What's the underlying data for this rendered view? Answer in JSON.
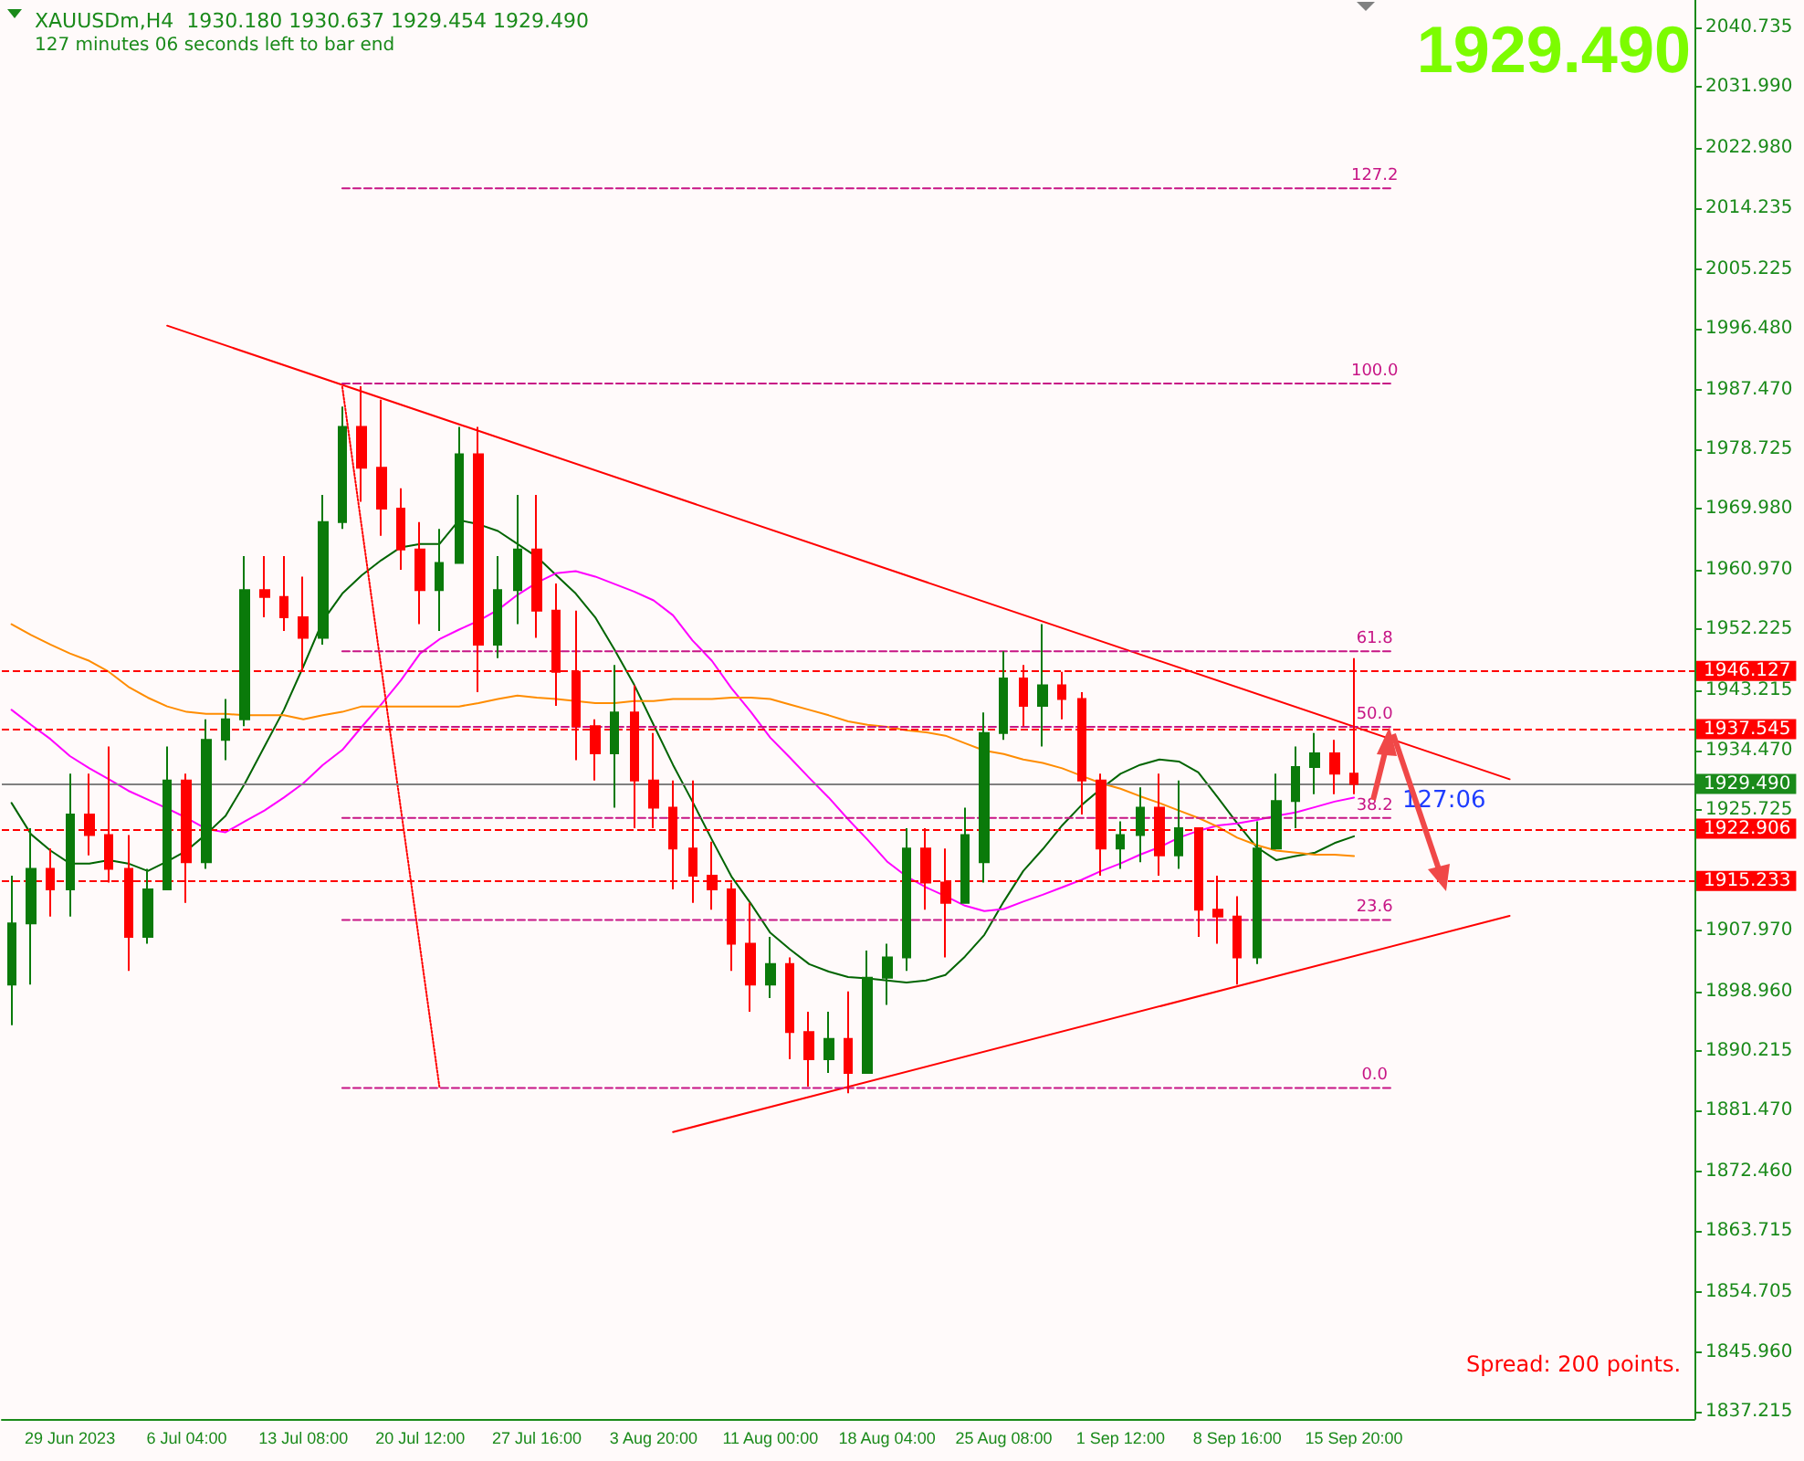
{
  "chart_data": {
    "type": "candlestick",
    "title": "XAUUSDm,H4  1930.180 1930.637 1929.454 1929.490",
    "subtitle": "127 minutes 06 seconds left to bar end",
    "categories": [
      null,
      null,
      null,
      "29 Jun 2023",
      null,
      null,
      null,
      null,
      null,
      "6 Jul 04:00",
      null,
      null,
      null,
      null,
      null,
      "13 Jul 08:00",
      null,
      null,
      null,
      null,
      null,
      "20 Jul 12:00",
      null,
      null,
      null,
      null,
      null,
      "27 Jul 16:00",
      null,
      null,
      null,
      null,
      null,
      "3 Aug 20:00",
      null,
      null,
      null,
      null,
      null,
      "11 Aug 00:00",
      null,
      null,
      null,
      null,
      null,
      "18 Aug 04:00",
      null,
      null,
      null,
      null,
      null,
      "25 Aug 08:00",
      null,
      null,
      null,
      null,
      null,
      "1 Sep 12:00",
      null,
      null,
      null,
      null,
      null,
      "8 Sep 16:00",
      null,
      null,
      null,
      null,
      null,
      "15 Sep 20:00",
      null,
      null,
      null,
      null,
      null,
      null,
      null,
      null,
      null,
      null,
      null,
      null,
      null,
      null,
      null,
      null,
      null
    ],
    "series": [
      {
        "type": "line",
        "color": "#006400",
        "values": [
          1926.7,
          1922.1,
          1919.7,
          1917.8,
          1917.8,
          1918.3,
          1917.8,
          1916.7,
          1918.1,
          1919.7,
          1922.1,
          1924.8,
          1929.6,
          1935.0,
          1940.4,
          1946.8,
          1953.5,
          1957.5,
          1960.2,
          1962.4,
          1964.3,
          1964.8,
          1964.8,
          1968.3,
          1967.7,
          1966.7,
          1964.8,
          1962.9,
          1960.2,
          1957.5,
          1954.0,
          1949.2,
          1944.1,
          1938.2,
          1932.3,
          1926.9,
          1921.3,
          1915.9,
          1911.9,
          1907.6,
          1905.2,
          1903.0,
          1901.9,
          1901.1,
          1900.9,
          1900.6,
          1900.3,
          1900.6,
          1901.4,
          1904.1,
          1907.3,
          1912.2,
          1916.7,
          1919.9,
          1923.4,
          1926.4,
          1928.8,
          1931.0,
          1932.3,
          1933.1,
          1932.8,
          1931.2,
          1927.5,
          1923.7,
          1920.2,
          1918.3,
          1918.9,
          1919.4,
          1920.8,
          1921.8,
          null,
          null,
          null,
          null,
          null,
          null,
          null,
          null,
          null,
          null,
          null,
          null,
          null,
          null,
          null,
          null,
          null
        ]
      },
      {
        "type": "line",
        "color": "#ff00ff",
        "values": [
          1940.4,
          1938.2,
          1936.1,
          1933.6,
          1931.8,
          1930.2,
          1928.5,
          1927.2,
          1925.9,
          1924.5,
          1922.9,
          1922.4,
          1924.0,
          1925.6,
          1927.5,
          1929.6,
          1932.3,
          1934.5,
          1937.9,
          1941.2,
          1944.7,
          1948.7,
          1950.8,
          1952.2,
          1953.5,
          1955.1,
          1957.3,
          1959.1,
          1960.5,
          1960.8,
          1960.0,
          1958.9,
          1957.8,
          1956.5,
          1954.3,
          1950.6,
          1947.6,
          1943.6,
          1940.1,
          1936.3,
          1933.4,
          1930.4,
          1927.5,
          1924.3,
          1921.3,
          1918.1,
          1915.9,
          1914.3,
          1913.0,
          1911.6,
          1910.8,
          1911.1,
          1912.2,
          1913.2,
          1914.3,
          1915.4,
          1916.7,
          1917.8,
          1919.1,
          1920.2,
          1921.6,
          1922.6,
          1923.4,
          1923.7,
          1924.2,
          1924.8,
          1925.3,
          1926.1,
          1926.9,
          1927.5,
          null,
          null,
          null,
          null,
          null,
          null,
          null,
          null,
          null,
          null,
          null,
          null,
          null,
          null,
          null,
          null,
          null
        ]
      },
      {
        "type": "line",
        "color": "#ff8c00",
        "values": [
          1953.0,
          1951.4,
          1950.0,
          1948.7,
          1947.6,
          1946.0,
          1943.8,
          1942.2,
          1940.9,
          1940.1,
          1939.8,
          1939.8,
          1939.6,
          1939.6,
          1939.6,
          1939.0,
          1939.6,
          1940.1,
          1940.9,
          1940.9,
          1940.9,
          1940.9,
          1940.9,
          1940.9,
          1941.4,
          1942.0,
          1942.5,
          1942.2,
          1942.0,
          1941.7,
          1941.4,
          1941.4,
          1941.7,
          1941.7,
          1942.0,
          1942.0,
          1942.0,
          1942.2,
          1942.2,
          1942.0,
          1941.2,
          1940.4,
          1939.6,
          1938.7,
          1938.2,
          1937.9,
          1937.4,
          1937.1,
          1936.6,
          1935.5,
          1934.4,
          1933.9,
          1933.1,
          1932.6,
          1931.8,
          1930.7,
          1929.6,
          1928.8,
          1927.7,
          1926.7,
          1925.6,
          1924.5,
          1923.2,
          1921.6,
          1920.5,
          1919.7,
          1919.4,
          1919.1,
          1919.1,
          1918.9,
          null,
          null,
          null,
          null,
          null,
          null,
          null,
          null,
          null,
          null,
          null,
          null,
          null,
          null,
          null,
          null,
          null
        ]
      },
      {
        "type": "line",
        "color": "#ff0000",
        "values": [
          null,
          null,
          null,
          null,
          null,
          null,
          null,
          null,
          1996.9,
          null,
          null,
          null,
          null,
          null,
          null,
          null,
          null,
          null,
          null,
          null,
          null,
          null,
          null,
          null,
          null,
          null,
          null,
          null,
          null,
          null,
          null,
          null,
          null,
          null,
          null,
          null,
          null,
          null,
          null,
          null,
          null,
          null,
          null,
          null,
          null,
          null,
          null,
          null,
          null,
          null,
          null,
          null,
          null,
          null,
          null,
          null,
          null,
          null,
          null,
          null,
          null,
          null,
          null,
          null,
          null,
          null,
          null,
          null,
          null,
          null,
          null,
          null,
          null,
          null,
          null,
          null,
          null,
          1930.2,
          null,
          null,
          null,
          null,
          null,
          null,
          null,
          null,
          null
        ]
      },
      {
        "type": "line",
        "color": "#ff0000",
        "values": [
          null,
          null,
          null,
          null,
          null,
          null,
          null,
          null,
          null,
          null,
          null,
          null,
          null,
          null,
          null,
          null,
          null,
          null,
          null,
          null,
          null,
          null,
          null,
          null,
          null,
          null,
          null,
          null,
          null,
          null,
          null,
          null,
          null,
          null,
          1878.3,
          null,
          null,
          null,
          null,
          null,
          null,
          null,
          null,
          null,
          null,
          null,
          null,
          null,
          null,
          null,
          null,
          null,
          null,
          null,
          null,
          null,
          null,
          null,
          null,
          null,
          null,
          null,
          null,
          null,
          null,
          null,
          null,
          null,
          null,
          null,
          null,
          null,
          null,
          null,
          null,
          null,
          null,
          1910.1,
          null,
          null,
          null,
          null,
          null,
          null,
          null,
          null,
          null
        ]
      },
      {
        "type": "line",
        "color": "#ff0000",
        "line_style": "dotted",
        "values": [
          null,
          null,
          null,
          null,
          null,
          null,
          null,
          null,
          null,
          null,
          null,
          null,
          null,
          null,
          null,
          null,
          null,
          1987.9,
          null,
          null,
          null,
          null,
          1884.8,
          null,
          null,
          null,
          null,
          null,
          null,
          null,
          null,
          null,
          null,
          null,
          null,
          null,
          null,
          null,
          null,
          null,
          null,
          null,
          null,
          null,
          null,
          null,
          null,
          null,
          null,
          null,
          null,
          null,
          null,
          null,
          null,
          null,
          null,
          null,
          null,
          null,
          null,
          null,
          null,
          null,
          null,
          null,
          null,
          null,
          null,
          null,
          null,
          null,
          null,
          null,
          null,
          null,
          null,
          null,
          null,
          null,
          null,
          null,
          null,
          null,
          null,
          null,
          null
        ]
      },
      {
        "type": "line",
        "name": "127.2",
        "color": "#c71585",
        "line_style": "dashed",
        "values": [
          null,
          null,
          null,
          null,
          null,
          null,
          null,
          null,
          null,
          null,
          null,
          null,
          null,
          null,
          null,
          null,
          null,
          2017.1,
          null,
          null,
          null,
          null,
          null,
          null,
          null,
          null,
          null,
          null,
          null,
          null,
          null,
          null,
          null,
          null,
          null,
          null,
          null,
          null,
          null,
          null,
          null,
          null,
          null,
          null,
          null,
          null,
          null,
          null,
          null,
          null,
          null,
          null,
          null,
          null,
          null,
          null,
          null,
          null,
          null,
          null,
          null,
          null,
          null,
          null,
          null,
          null,
          null,
          null,
          null,
          null,
          null,
          2017.1,
          null,
          null,
          null,
          null,
          null,
          null,
          null,
          null,
          null,
          null,
          null,
          null,
          null,
          null,
          null
        ]
      },
      {
        "type": "line",
        "name": "100.0",
        "color": "#c71585",
        "line_style": "dashed",
        "values": [
          null,
          null,
          null,
          null,
          null,
          null,
          null,
          null,
          null,
          null,
          null,
          null,
          null,
          null,
          null,
          null,
          null,
          1988.4,
          null,
          null,
          null,
          null,
          null,
          null,
          null,
          null,
          null,
          null,
          null,
          null,
          null,
          null,
          null,
          null,
          null,
          null,
          null,
          null,
          null,
          null,
          null,
          null,
          null,
          null,
          null,
          null,
          null,
          null,
          null,
          null,
          null,
          null,
          null,
          null,
          null,
          null,
          null,
          null,
          null,
          null,
          null,
          null,
          null,
          null,
          null,
          null,
          null,
          null,
          null,
          null,
          null,
          1988.4,
          null,
          null,
          null,
          null,
          null,
          null,
          null,
          null,
          null,
          null,
          null,
          null,
          null,
          null,
          null
        ]
      },
      {
        "type": "line",
        "name": "61.8",
        "color": "#c71585",
        "line_style": "dashed",
        "values": [
          null,
          null,
          null,
          null,
          null,
          null,
          null,
          null,
          null,
          null,
          null,
          null,
          null,
          null,
          null,
          null,
          null,
          1949.0,
          null,
          null,
          null,
          null,
          null,
          null,
          null,
          null,
          null,
          null,
          null,
          null,
          null,
          null,
          null,
          null,
          null,
          null,
          null,
          null,
          null,
          null,
          null,
          null,
          null,
          null,
          null,
          null,
          null,
          null,
          null,
          null,
          null,
          null,
          null,
          null,
          null,
          null,
          null,
          null,
          null,
          null,
          null,
          null,
          null,
          null,
          null,
          null,
          null,
          null,
          null,
          null,
          null,
          1949.0,
          null,
          null,
          null,
          null,
          null,
          null,
          null,
          null,
          null,
          null,
          null,
          null,
          null,
          null,
          null
        ]
      },
      {
        "type": "line",
        "name": "50.0",
        "color": "#c71585",
        "line_style": "dashed",
        "values": [
          null,
          null,
          null,
          null,
          null,
          null,
          null,
          null,
          null,
          null,
          null,
          null,
          null,
          null,
          null,
          null,
          null,
          1937.9,
          null,
          null,
          null,
          null,
          null,
          null,
          null,
          null,
          null,
          null,
          null,
          null,
          null,
          null,
          null,
          null,
          null,
          null,
          null,
          null,
          null,
          null,
          null,
          null,
          null,
          null,
          null,
          null,
          null,
          null,
          null,
          null,
          null,
          null,
          null,
          null,
          null,
          null,
          null,
          null,
          null,
          null,
          null,
          null,
          null,
          null,
          null,
          null,
          null,
          null,
          null,
          null,
          null,
          1937.9,
          null,
          null,
          null,
          null,
          null,
          null,
          null,
          null,
          null,
          null,
          null,
          null,
          null,
          null,
          null
        ]
      },
      {
        "type": "line",
        "name": "38.2",
        "color": "#c71585",
        "line_style": "dashed",
        "values": [
          null,
          null,
          null,
          null,
          null,
          null,
          null,
          null,
          null,
          null,
          null,
          null,
          null,
          null,
          null,
          null,
          null,
          1924.5,
          null,
          null,
          null,
          null,
          null,
          null,
          null,
          null,
          null,
          null,
          null,
          null,
          null,
          null,
          null,
          null,
          null,
          null,
          null,
          null,
          null,
          null,
          null,
          null,
          null,
          null,
          null,
          null,
          null,
          null,
          null,
          null,
          null,
          null,
          null,
          null,
          null,
          null,
          null,
          null,
          null,
          null,
          null,
          null,
          null,
          null,
          null,
          null,
          null,
          null,
          null,
          null,
          null,
          1924.5,
          null,
          null,
          null,
          null,
          null,
          null,
          null,
          null,
          null,
          null,
          null,
          null,
          null,
          null,
          null
        ]
      },
      {
        "type": "line",
        "name": "23.6",
        "color": "#c71585",
        "line_style": "dashed",
        "values": [
          null,
          null,
          null,
          null,
          null,
          null,
          null,
          null,
          null,
          null,
          null,
          null,
          null,
          null,
          null,
          null,
          null,
          1909.5,
          null,
          null,
          null,
          null,
          null,
          null,
          null,
          null,
          null,
          null,
          null,
          null,
          null,
          null,
          null,
          null,
          null,
          null,
          null,
          null,
          null,
          null,
          null,
          null,
          null,
          null,
          null,
          null,
          null,
          null,
          null,
          null,
          null,
          null,
          null,
          null,
          null,
          null,
          null,
          null,
          null,
          null,
          null,
          null,
          null,
          null,
          null,
          null,
          null,
          null,
          null,
          null,
          null,
          1909.5,
          null,
          null,
          null,
          null,
          null,
          null,
          null,
          null,
          null,
          null,
          null,
          null,
          null,
          null,
          null
        ]
      },
      {
        "type": "line",
        "name": "0.0",
        "color": "#c71585",
        "line_style": "dashed",
        "values": [
          null,
          null,
          null,
          null,
          null,
          null,
          null,
          null,
          null,
          null,
          null,
          null,
          null,
          null,
          null,
          null,
          null,
          1884.8,
          null,
          null,
          null,
          null,
          null,
          null,
          null,
          null,
          null,
          null,
          null,
          null,
          null,
          null,
          null,
          null,
          null,
          null,
          null,
          null,
          null,
          null,
          null,
          null,
          null,
          null,
          null,
          null,
          null,
          null,
          null,
          null,
          null,
          null,
          null,
          null,
          null,
          null,
          null,
          null,
          null,
          null,
          null,
          null,
          null,
          null,
          null,
          null,
          null,
          null,
          null,
          null,
          null,
          1884.8,
          null,
          null,
          null,
          null,
          null,
          null,
          null,
          null,
          null,
          null,
          null,
          null,
          null,
          null,
          null
        ]
      },
      {
        "ohlc": [
          [
            1900,
            1916,
            1894,
            1909
          ],
          [
            1909,
            1923,
            1900,
            1917
          ],
          [
            1917,
            1920,
            1910,
            1914
          ],
          [
            1914,
            1931,
            1910,
            1925
          ],
          [
            1925,
            1931,
            1919,
            1922
          ],
          [
            1922,
            1935,
            1915,
            1917
          ],
          [
            1917,
            1922,
            1902,
            1907
          ],
          [
            1907,
            1917,
            1906,
            1914
          ],
          [
            1914,
            1935,
            1914,
            1930
          ],
          [
            1930,
            1931,
            1912,
            1918
          ],
          [
            1918,
            1939,
            1917,
            1936
          ],
          [
            1936,
            1942,
            1933,
            1939
          ],
          [
            1939,
            1963,
            1938,
            1958
          ],
          [
            1958,
            1963,
            1954,
            1957
          ],
          [
            1957,
            1963,
            1952,
            1954
          ],
          [
            1954,
            1960,
            1946,
            1951
          ],
          [
            1951,
            1972,
            1950,
            1968
          ],
          [
            1968,
            1985,
            1967,
            1982
          ],
          [
            1982,
            1988,
            1971,
            1976
          ],
          [
            1976,
            1986,
            1966,
            1970
          ],
          [
            1970,
            1973,
            1961,
            1964
          ],
          [
            1964,
            1968,
            1953,
            1958
          ],
          [
            1958,
            1967,
            1952,
            1962
          ],
          [
            1962,
            1982,
            1962,
            1978
          ],
          [
            1978,
            1982,
            1943,
            1950
          ],
          [
            1950,
            1963,
            1948,
            1958
          ],
          [
            1958,
            1972,
            1953,
            1964
          ],
          [
            1964,
            1972,
            1951,
            1955
          ],
          [
            1955,
            1959,
            1941,
            1946
          ],
          [
            1946,
            1955,
            1933,
            1938
          ],
          [
            1938,
            1939,
            1930,
            1934
          ],
          [
            1934,
            1947,
            1926,
            1940
          ],
          [
            1940,
            1944,
            1923,
            1930
          ],
          [
            1930,
            1937,
            1923,
            1926
          ],
          [
            1926,
            1930,
            1914,
            1920
          ],
          [
            1920,
            1930,
            1912,
            1916
          ],
          [
            1916,
            1921,
            1911,
            1914
          ],
          [
            1914,
            1915,
            1902,
            1906
          ],
          [
            1906,
            1912,
            1896,
            1900
          ],
          [
            1900,
            1907,
            1898,
            1903
          ],
          [
            1903,
            1904,
            1889,
            1893
          ],
          [
            1893,
            1896,
            1885,
            1889
          ],
          [
            1889,
            1896,
            1887,
            1892
          ],
          [
            1892,
            1899,
            1884,
            1887
          ],
          [
            1887,
            1905,
            1887,
            1901
          ],
          [
            1901,
            1906,
            1897,
            1904
          ],
          [
            1904,
            1923,
            1902,
            1920
          ],
          [
            1920,
            1923,
            1911,
            1915
          ],
          [
            1915,
            1920,
            1904,
            1912
          ],
          [
            1912,
            1926,
            1912,
            1922
          ],
          [
            1918,
            1940,
            1915,
            1937
          ],
          [
            1937,
            1949,
            1936,
            1945
          ],
          [
            1945,
            1947,
            1938,
            1941
          ],
          [
            1941,
            1953,
            1935,
            1944
          ],
          [
            1944,
            1946,
            1939,
            1942
          ],
          [
            1942,
            1943,
            1925,
            1930
          ],
          [
            1930,
            1931,
            1916,
            1920
          ],
          [
            1920,
            1924,
            1917,
            1922
          ],
          [
            1922,
            1929,
            1918,
            1926
          ],
          [
            1926,
            1931,
            1916,
            1919
          ],
          [
            1919,
            1930,
            1917,
            1923
          ],
          [
            1923,
            1923,
            1907,
            1911
          ],
          [
            1911,
            1916,
            1906,
            1910
          ],
          [
            1910,
            1913,
            1900,
            1904
          ],
          [
            1904,
            1924,
            1903,
            1920
          ],
          [
            1920,
            1931,
            1920,
            1927
          ],
          [
            1927,
            1935,
            1923,
            1932
          ],
          [
            1932,
            1937,
            1928,
            1934
          ],
          [
            1934,
            1936,
            1928,
            1931
          ],
          [
            1931,
            1948,
            1928,
            1929.49
          ],
          null,
          null,
          null,
          null,
          null,
          null,
          null,
          null,
          null,
          null,
          null,
          null,
          null,
          null,
          null,
          null,
          null
        ],
        "colors": [
          "#0a7a0a",
          "#0a7a0a",
          "#ff0000",
          "#0a7a0a",
          "#ff0000",
          "#ff0000",
          "#ff0000",
          "#0a7a0a",
          "#0a7a0a",
          "#ff0000",
          "#0a7a0a",
          "#0a7a0a",
          "#0a7a0a",
          "#ff0000",
          "#ff0000",
          "#ff0000",
          "#0a7a0a",
          "#0a7a0a",
          "#ff0000",
          "#ff0000",
          "#ff0000",
          "#ff0000",
          "#0a7a0a",
          "#0a7a0a",
          "#ff0000",
          "#0a7a0a",
          "#0a7a0a",
          "#ff0000",
          "#ff0000",
          "#ff0000",
          "#ff0000",
          "#0a7a0a",
          "#ff0000",
          "#ff0000",
          "#ff0000",
          "#ff0000",
          "#ff0000",
          "#ff0000",
          "#ff0000",
          "#0a7a0a",
          "#ff0000",
          "#ff0000",
          "#0a7a0a",
          "#ff0000",
          "#0a7a0a",
          "#0a7a0a",
          "#0a7a0a",
          "#ff0000",
          "#ff0000",
          "#0a7a0a",
          "#0a7a0a",
          "#0a7a0a",
          "#ff0000",
          "#0a7a0a",
          "#ff0000",
          "#ff0000",
          "#ff0000",
          "#0a7a0a",
          "#0a7a0a",
          "#ff0000",
          "#0a7a0a",
          "#ff0000",
          "#ff0000",
          "#ff0000",
          "#0a7a0a",
          "#0a7a0a",
          "#0a7a0a",
          "#0a7a0a",
          "#ff0000",
          "#ff0000",
          null,
          null,
          null,
          null,
          null,
          null,
          null,
          null,
          null,
          null,
          null,
          null,
          null,
          null,
          null,
          null,
          null
        ]
      }
    ],
    "ylim": [
      1836.1,
      2044.8
    ],
    "yticks": [
      2040.735,
      {
        "value": 2031.99,
        "label": "2031.990"
      },
      {
        "value": 2022.98,
        "label": "2022.980"
      },
      2014.235,
      2005.225,
      {
        "value": 1996.48,
        "label": "1996.480"
      },
      {
        "value": 1987.47,
        "label": "1987.470"
      },
      1978.725,
      {
        "value": 1969.98,
        "label": "1969.980"
      },
      {
        "value": 1960.97,
        "label": "1960.970"
      },
      1952.225,
      1943.215,
      {
        "value": 1934.47,
        "label": "1934.470"
      },
      1925.725,
      {
        "value": 1916.715,
        "label": null
      },
      {
        "value": 1907.97,
        "label": "1907.970"
      },
      {
        "value": 1898.96,
        "label": "1898.960"
      },
      1890.215,
      {
        "value": 1881.47,
        "label": "1881.470"
      },
      {
        "value": 1872.46,
        "label": "1872.460"
      },
      1863.715,
      1854.705,
      {
        "value": 1845.96,
        "label": "1845.960"
      },
      1837.215
    ],
    "ref_lines": [
      {
        "axis": "y",
        "value": 1946.127,
        "label": "1946.127",
        "color": "#ff0000",
        "line_style": "dashed"
      },
      {
        "axis": "y",
        "value": 1937.545,
        "label": "1937.545",
        "color": "#ff0000",
        "line_style": "dashed"
      },
      {
        "axis": "y",
        "value": 1929.49,
        "label": "1929.490",
        "color": "#808080",
        "line_style": "solid"
      },
      {
        "axis": "y",
        "value": 1922.906,
        "label": "1922.906",
        "color": "#ff0000",
        "line_style": "dashed"
      },
      {
        "axis": "y",
        "value": 1915.233,
        "label": "1915.233",
        "color": "#ff0000",
        "line_style": "dashed"
      }
    ],
    "annotations": [
      "1929.490",
      "127:06",
      "Spread: 200 points."
    ],
    "legend": false,
    "grid": false,
    "marker": "none"
  }
}
